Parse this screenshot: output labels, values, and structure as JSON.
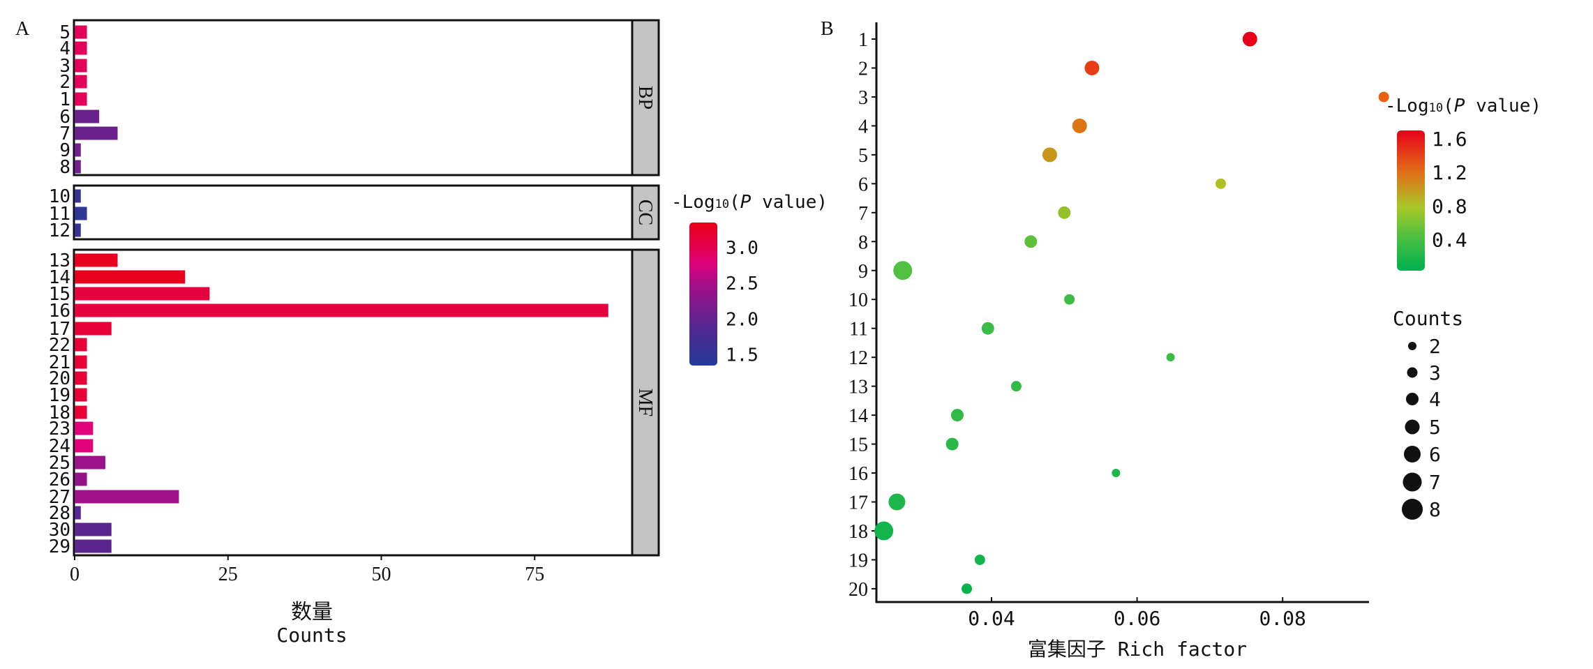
{
  "chart_data": [
    {
      "type": "bar",
      "panel_label": "A",
      "orientation": "horizontal",
      "xlabel_cn": "数量",
      "xlabel": "Counts",
      "xticks": [
        0,
        25,
        50,
        75
      ],
      "xlim": [
        0,
        95
      ],
      "legend": {
        "title_prefix": "-Log",
        "title_sub": "10",
        "title_p": "P",
        "title_suffix": " value)",
        "title_open": "(",
        "ticks": [
          "3.0",
          "2.5",
          "2.0",
          "1.5"
        ],
        "tick_values": [
          3.0,
          2.5,
          2.0,
          1.5
        ],
        "range": [
          1.35,
          3.35
        ],
        "placement": "right"
      },
      "facets": [
        {
          "name": "BP",
          "categories": [
            "5",
            "4",
            "3",
            "2",
            "1",
            "6",
            "7",
            "9",
            "8"
          ],
          "values": [
            2,
            2,
            2,
            2,
            2,
            4,
            7,
            1,
            1
          ],
          "neglog10p": [
            2.95,
            2.95,
            2.95,
            2.95,
            2.95,
            2.05,
            2.05,
            2.1,
            2.1
          ]
        },
        {
          "name": "CC",
          "categories": [
            "10",
            "11",
            "12"
          ],
          "values": [
            1,
            2,
            1
          ],
          "neglog10p": [
            1.6,
            1.5,
            1.6
          ]
        },
        {
          "name": "MF",
          "categories": [
            "13",
            "14",
            "15",
            "16",
            "17",
            "22",
            "21",
            "20",
            "19",
            "18",
            "23",
            "24",
            "25",
            "26",
            "27",
            "28",
            "30",
            "29"
          ],
          "values": [
            7,
            18,
            22,
            87,
            6,
            2,
            2,
            2,
            2,
            2,
            3,
            3,
            5,
            2,
            17,
            1,
            6,
            6
          ],
          "neglog10p": [
            3.3,
            3.3,
            3.1,
            3.1,
            3.15,
            3.15,
            3.15,
            3.15,
            3.15,
            3.15,
            2.8,
            2.8,
            2.4,
            2.35,
            2.45,
            1.9,
            1.95,
            1.95
          ]
        }
      ]
    },
    {
      "type": "scatter",
      "panel_label": "B",
      "xlabel": "富集因子 Rich factor",
      "xticks": [
        "0.04",
        "0.06",
        "0.08"
      ],
      "xtick_values": [
        0.04,
        0.06,
        0.08
      ],
      "xlim": [
        0.0225,
        0.0965
      ],
      "categories": [
        "1",
        "2",
        "3",
        "4",
        "5",
        "6",
        "7",
        "8",
        "9",
        "10",
        "11",
        "12",
        "13",
        "14",
        "15",
        "16",
        "17",
        "18",
        "19",
        "20"
      ],
      "rich_factor": [
        0.0755,
        0.0538,
        0.0939,
        0.0521,
        0.048,
        0.0715,
        0.05,
        0.0454,
        0.0278,
        0.0507,
        0.0395,
        0.0646,
        0.0434,
        0.0353,
        0.0346,
        0.0571,
        0.027,
        0.0252,
        0.0384,
        0.0366
      ],
      "counts": [
        5,
        5,
        3,
        5,
        5,
        3,
        4,
        4,
        7,
        3,
        4,
        2,
        3,
        4,
        4,
        2,
        6,
        7,
        3,
        3
      ],
      "neglog10p": [
        1.6,
        1.35,
        1.2,
        1.1,
        0.95,
        0.75,
        0.65,
        0.45,
        0.4,
        0.3,
        0.3,
        0.3,
        0.25,
        0.25,
        0.2,
        0.15,
        0.15,
        0.1,
        0.1,
        0.05
      ],
      "color_legend": {
        "title_prefix": "-Log",
        "title_sub": "10",
        "title_open": "(",
        "title_p": "P",
        "title_suffix": " value)",
        "ticks": [
          "1.6",
          "1.2",
          "0.8",
          "0.4"
        ],
        "tick_values": [
          1.6,
          1.2,
          0.8,
          0.4
        ],
        "range": [
          0.03,
          1.7
        ]
      },
      "size_legend": {
        "title": "Counts",
        "items": [
          "2",
          "3",
          "4",
          "5",
          "6",
          "7",
          "8"
        ]
      }
    }
  ]
}
